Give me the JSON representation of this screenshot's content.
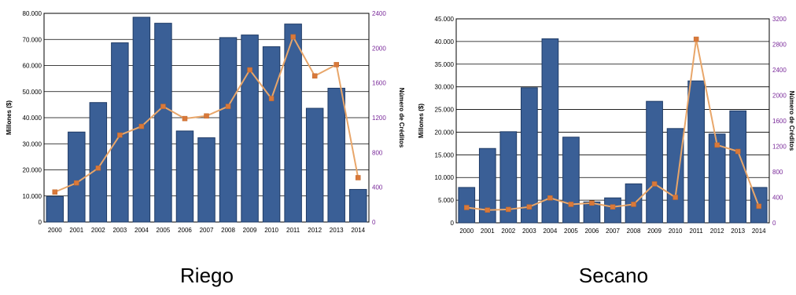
{
  "chart_data": [
    {
      "type": "bar",
      "combo": "bar+line",
      "caption": "Riego",
      "categories": [
        "2000",
        "2001",
        "2002",
        "2003",
        "2004",
        "2005",
        "2006",
        "2007",
        "2008",
        "2009",
        "2010",
        "2011",
        "2012",
        "2013",
        "2014"
      ],
      "series": [
        {
          "axis": "left",
          "type": "bar",
          "values": [
            9800,
            34500,
            45800,
            68700,
            78500,
            76200,
            34900,
            32300,
            70700,
            71700,
            67200,
            75900,
            43600,
            51300,
            12500
          ]
        },
        {
          "axis": "right",
          "type": "line",
          "values": [
            345,
            450,
            620,
            1000,
            1100,
            1330,
            1190,
            1220,
            1330,
            1750,
            1420,
            2130,
            1680,
            1810,
            510
          ]
        }
      ],
      "ylabel": "Millones ($)",
      "y2label": "Número de Créditos",
      "ylim": [
        0,
        80000
      ],
      "y2lim": [
        0,
        2400
      ],
      "yticks": [
        "0",
        "10.000",
        "20.000",
        "30.000",
        "40.000",
        "50.000",
        "60.000",
        "70.000",
        "80.000"
      ],
      "y2ticks": [
        "0",
        "400",
        "800",
        "1200",
        "1600",
        "2000",
        "2400"
      ],
      "grid": true,
      "colors": {
        "bar": "#3a5f96",
        "bar_edge": "#1f3b66",
        "line": "#e8a66a",
        "marker": "#d9793a",
        "right_axis": "#7a2a9a"
      }
    },
    {
      "type": "bar",
      "combo": "bar+line",
      "caption": "Secano",
      "categories": [
        "2000",
        "2001",
        "2002",
        "2003",
        "2004",
        "2005",
        "2006",
        "2007",
        "2008",
        "2009",
        "2010",
        "2011",
        "2012",
        "2013",
        "2014"
      ],
      "series": [
        {
          "axis": "left",
          "type": "bar",
          "values": [
            7800,
            16400,
            20100,
            29800,
            40600,
            18900,
            4600,
            5500,
            8600,
            26800,
            20800,
            31300,
            19600,
            24700,
            7800
          ]
        },
        {
          "axis": "right",
          "type": "line",
          "values": [
            240,
            200,
            210,
            250,
            390,
            290,
            310,
            250,
            290,
            610,
            400,
            2880,
            1220,
            1120,
            260
          ]
        }
      ],
      "ylabel": "Millones ($)",
      "y2label": "Número de Créditos",
      "ylim": [
        0,
        45000
      ],
      "y2lim": [
        0,
        3200
      ],
      "yticks": [
        "0",
        "5.000",
        "10.000",
        "15.000",
        "20.000",
        "25.000",
        "30.000",
        "35.000",
        "40.000",
        "45.000"
      ],
      "y2ticks": [
        "0",
        "400",
        "800",
        "1200",
        "1600",
        "2000",
        "2400",
        "2800",
        "3200"
      ],
      "grid": true,
      "colors": {
        "bar": "#3a5f96",
        "bar_edge": "#1f3b66",
        "line": "#e8a66a",
        "marker": "#d9793a",
        "right_axis": "#7a2a9a"
      }
    }
  ]
}
